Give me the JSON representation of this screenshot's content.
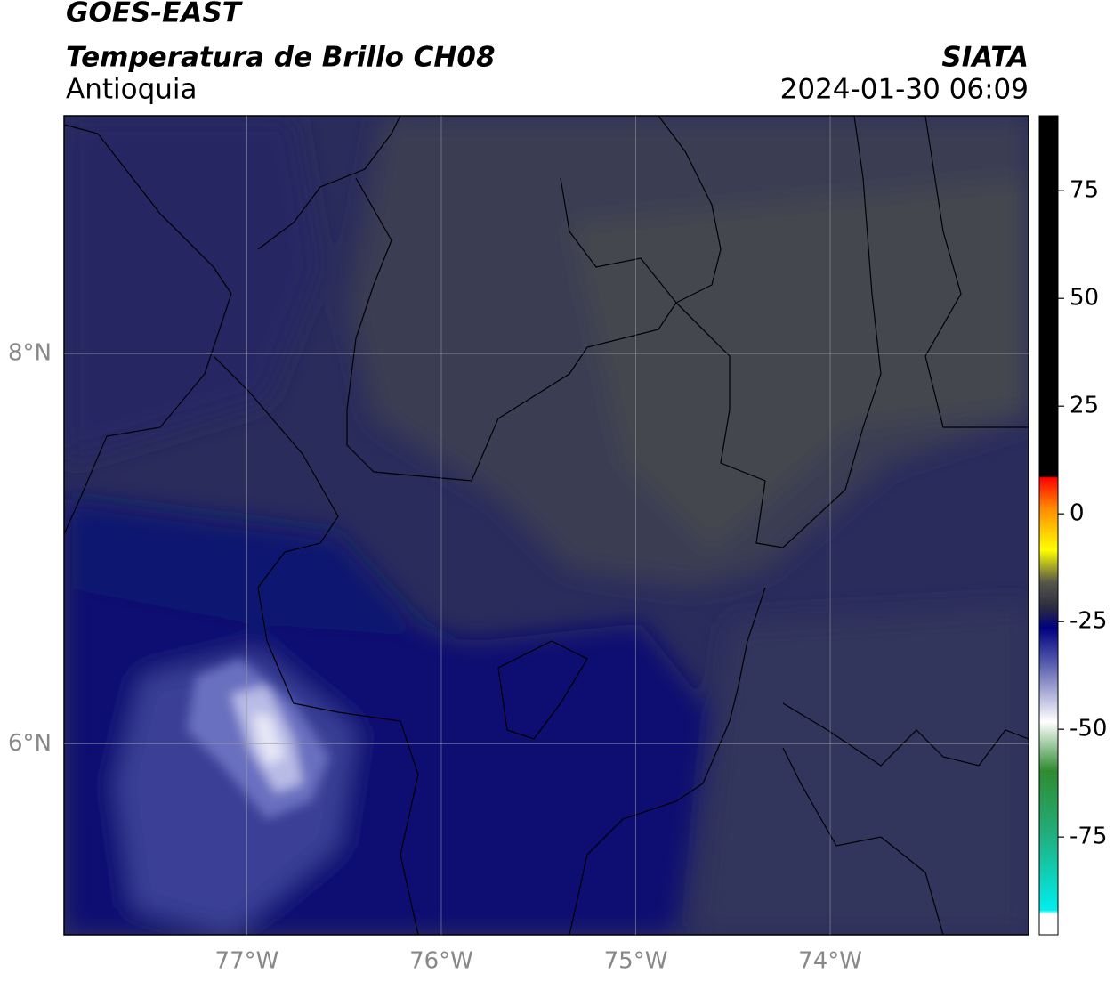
{
  "chart_data": {
    "type": "map",
    "title": "GOES-EAST",
    "subtitle": "Temperatura de Brillo CH08",
    "region": "Antioquia",
    "source": "SIATA",
    "datetime": "2024-01-30 06:09",
    "xlim": [
      -77.94,
      -72.98
    ],
    "ylim": [
      5.02,
      9.22
    ],
    "xticks": [
      {
        "value": -77,
        "label": "77°W"
      },
      {
        "value": -76,
        "label": "76°W"
      },
      {
        "value": -75,
        "label": "75°W"
      },
      {
        "value": -74,
        "label": "74°W"
      }
    ],
    "yticks": [
      {
        "value": 8,
        "label": "8°N"
      },
      {
        "value": 6,
        "label": "6°N"
      }
    ],
    "grid": true,
    "colorbar": {
      "lim": [
        -97.7,
        92.4
      ],
      "ticks": [
        75,
        50,
        25,
        0,
        -25,
        -50,
        -75
      ]
    }
  }
}
